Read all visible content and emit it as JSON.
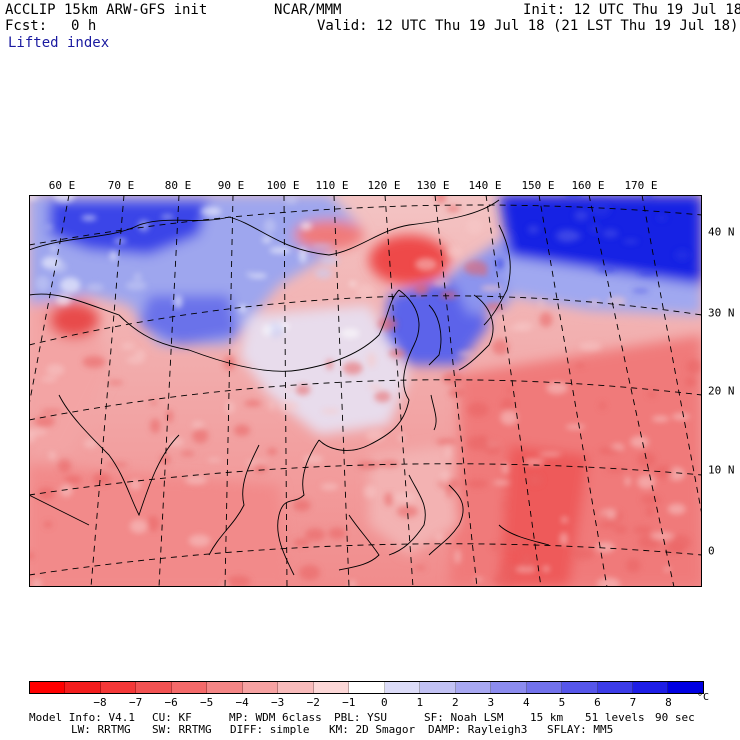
{
  "header": {
    "model": "ACCLIP 15km ARW-GFS init",
    "center": "NCAR/MMM",
    "init": "Init: 12 UTC Thu 19 Jul 18",
    "fcst_label": "Fcst:",
    "fcst_value": "0 h",
    "valid": "Valid: 12 UTC Thu 19 Jul 18 (21 LST Thu 19 Jul 18)",
    "field": "Lifted index"
  },
  "map": {
    "lon_labels": [
      "60 E",
      "70 E",
      "80 E",
      "90 E",
      "100 E",
      "110 E",
      "120 E",
      "130 E",
      "140 E",
      "150 E",
      "160 E",
      "170 E"
    ],
    "lat_labels": [
      "40 N",
      "30 N",
      "20 N",
      "10 N",
      "0"
    ]
  },
  "colorbar": {
    "colors": [
      "#ff0000",
      "#f31d1d",
      "#f43838",
      "#f25252",
      "#f46a6a",
      "#f48686",
      "#f6a2a2",
      "#f8bbbb",
      "#fcd7d7",
      "#ffffff",
      "#dcdcf8",
      "#c2c2f4",
      "#a8a8f2",
      "#8c8cef",
      "#7272ec",
      "#5656ea",
      "#3c3ce8",
      "#1e1ee6",
      "#0000e2"
    ],
    "ticks": [
      "−8",
      "−7",
      "−6",
      "−5",
      "−4",
      "−3",
      "−2",
      "−1",
      "0",
      "1",
      "2",
      "3",
      "4",
      "5",
      "6",
      "7",
      "8"
    ],
    "unit": "°C"
  },
  "footer": {
    "line1": [
      "Model Info: V4.1",
      "CU: KF",
      "MP: WDM 6class",
      "PBL: YSU",
      "SF: Noah LSM",
      "15 km",
      "51 levels",
      "90 sec"
    ],
    "line2": [
      "LW: RRTMG",
      "SW: RRTMG",
      "DIFF: simple",
      "KM: 2D Smagor",
      "DAMP: Rayleigh3",
      "SFLAY: MM5"
    ]
  }
}
